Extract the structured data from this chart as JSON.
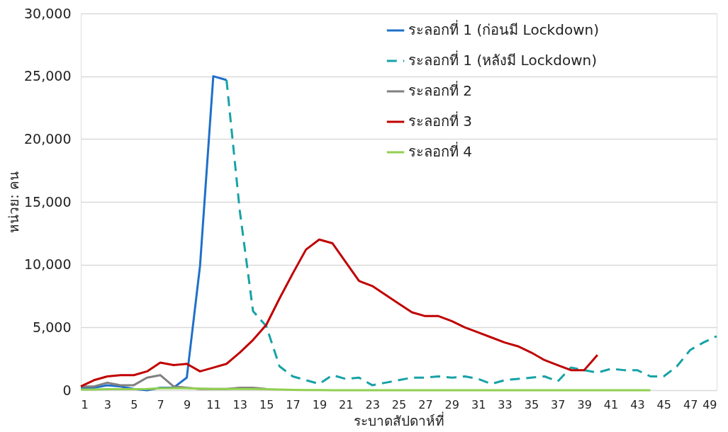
{
  "chart_data": {
    "type": "line",
    "xlabel": "ระบาดสัปดาห์ที่",
    "ylabel": "หน่วย: คน",
    "xlim": [
      1,
      49
    ],
    "xticks": [
      1,
      3,
      5,
      7,
      9,
      11,
      13,
      15,
      17,
      19,
      21,
      23,
      25,
      27,
      29,
      31,
      33,
      35,
      37,
      39,
      41,
      43,
      45,
      47,
      49
    ],
    "ylim": [
      0,
      30000
    ],
    "yticks": [
      0,
      {
        "value": 5000,
        "label": "5,000"
      },
      {
        "value": 10000,
        "label": "10,000"
      },
      {
        "value": 15000,
        "label": "15,000"
      },
      {
        "value": 20000,
        "label": "20,000"
      },
      {
        "value": 25000,
        "label": "25,000"
      },
      {
        "value": 30000,
        "label": "30,000"
      }
    ],
    "grid": "y",
    "legend": "top right",
    "marker": "none",
    "series": [
      {
        "name": "ระลอกที่ 1 (ก่อนมี Lockdown)",
        "color": "#1f70c8",
        "line_style": "solid",
        "x": [
          1,
          2,
          3,
          4,
          5,
          6,
          7,
          8,
          9,
          10,
          11,
          12
        ],
        "values": [
          200,
          200,
          400,
          300,
          100,
          0,
          200,
          200,
          1000,
          9900,
          25000,
          24700
        ]
      },
      {
        "name": "ระลอกที่ 1 (หลังมี Lockdown)",
        "color": "#17a2a6",
        "line_style": "dashed",
        "x": [
          12,
          13,
          14,
          15,
          16,
          17,
          18,
          19,
          20,
          21,
          22,
          23,
          24,
          25,
          26,
          27,
          28,
          29,
          30,
          31,
          32,
          33,
          34,
          35,
          36,
          37,
          38,
          39,
          40,
          41,
          42,
          43,
          44,
          45,
          46,
          47,
          48,
          49
        ],
        "values": [
          24700,
          14300,
          6300,
          5100,
          1900,
          1100,
          800,
          500,
          1200,
          900,
          1000,
          400,
          600,
          800,
          1000,
          1000,
          1100,
          1000,
          1100,
          900,
          500,
          800,
          900,
          1000,
          1100,
          700,
          1800,
          1600,
          1400,
          1700,
          1600,
          1600,
          1100,
          1100,
          1900,
          3200,
          3800,
          4300
        ]
      },
      {
        "name": "ระลอกที่ 2",
        "color": "#808080",
        "line_style": "solid",
        "x": [
          1,
          2,
          3,
          4,
          5,
          6,
          7,
          8,
          9,
          10,
          11,
          12,
          13,
          14,
          15
        ],
        "values": [
          300,
          300,
          600,
          400,
          400,
          1000,
          1200,
          300,
          200,
          100,
          100,
          100,
          200,
          200,
          100
        ]
      },
      {
        "name": "ระลอกที่ 3",
        "color": "#c00000",
        "line_style": "solid",
        "x": [
          1,
          2,
          3,
          4,
          5,
          6,
          7,
          8,
          9,
          10,
          11,
          12,
          13,
          14,
          15,
          16,
          17,
          18,
          19,
          20,
          21,
          22,
          23,
          24,
          25,
          26,
          27,
          28,
          29,
          30,
          31,
          32,
          33,
          34,
          35,
          36,
          37,
          38,
          39,
          40
        ],
        "values": [
          300,
          800,
          1100,
          1200,
          1200,
          1500,
          2200,
          2000,
          2100,
          1500,
          1800,
          2100,
          3000,
          4000,
          5200,
          7300,
          9300,
          11200,
          12000,
          11700,
          10200,
          8700,
          8300,
          7600,
          6900,
          6200,
          5900,
          5900,
          5500,
          5000,
          4600,
          4200,
          3800,
          3500,
          3000,
          2400,
          2000,
          1600,
          1600,
          2800
        ]
      },
      {
        "name": "ระลอกที่ 4",
        "color": "#92d050",
        "line_style": "solid",
        "x": [
          1,
          2,
          3,
          4,
          5,
          6,
          7,
          8,
          9,
          10,
          11,
          12,
          13,
          14,
          15,
          16,
          17,
          18,
          19,
          20,
          21,
          22,
          23,
          24,
          25,
          26,
          27,
          28,
          29,
          30,
          31,
          32,
          33,
          34,
          35,
          36,
          37,
          38,
          39,
          40,
          41,
          42,
          43,
          44
        ],
        "values": [
          50,
          50,
          80,
          80,
          80,
          100,
          150,
          150,
          150,
          120,
          100,
          100,
          100,
          100,
          80,
          50,
          30,
          20,
          10,
          0,
          0,
          0,
          0,
          0,
          0,
          0,
          0,
          0,
          0,
          0,
          0,
          0,
          0,
          0,
          0,
          0,
          0,
          0,
          0,
          0,
          0,
          0,
          0,
          0
        ]
      }
    ]
  }
}
